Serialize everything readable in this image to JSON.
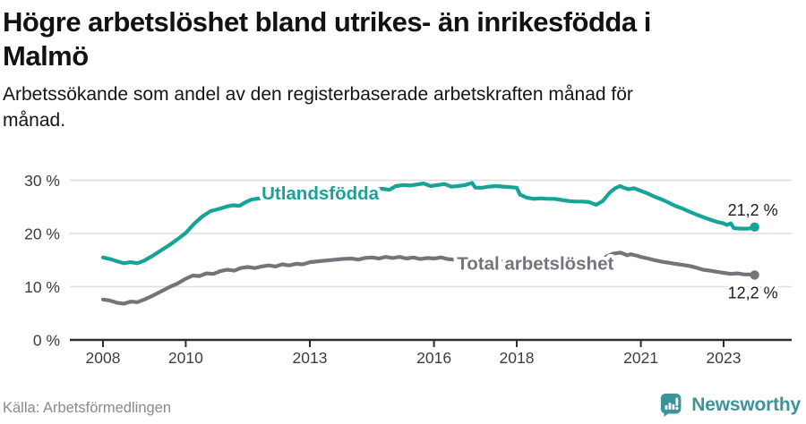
{
  "header": {
    "title": "Högre arbetslöshet bland utrikes- än inrikesfödda i\nMalmö",
    "subtitle": "Arbetssökande som andel av den registerbaserade arbetskraften månad för\nmånad."
  },
  "footer": {
    "source": "Källa: Arbetsförmedlingen",
    "logo_text": "Newsworthy"
  },
  "colors": {
    "accent_teal": "#17A398",
    "neutral_gray": "#76747B",
    "logo_teal": "#3B9598",
    "grid": "#DEDEDE",
    "axis": "#2D2D2D"
  },
  "chart_data": {
    "type": "line",
    "unit": "percent of registered labour force",
    "x_axis": {
      "range": [
        2007.2,
        2024.65
      ],
      "ticks": [
        {
          "value": 2008,
          "label": "2008"
        },
        {
          "value": 2010,
          "label": "2010"
        },
        {
          "value": 2013,
          "label": "2013"
        },
        {
          "value": 2016,
          "label": "2016"
        },
        {
          "value": 2018,
          "label": "2018"
        },
        {
          "value": 2021,
          "label": "2021"
        },
        {
          "value": 2023,
          "label": "2023"
        }
      ]
    },
    "y_axis": {
      "range": [
        0,
        32.8
      ],
      "grid": true,
      "ticks": [
        {
          "value": 0,
          "label": "0 %"
        },
        {
          "value": 10,
          "label": "10 %"
        },
        {
          "value": 20,
          "label": "20 %"
        },
        {
          "value": 30,
          "label": "30 %"
        }
      ]
    },
    "series": [
      {
        "name": "Utlandsfödda",
        "color": "#17A398",
        "end_label": "21,2 %",
        "end_value": 21.2,
        "end_label_side": "above",
        "label_anchor": [
          2013.25,
          27.6
        ],
        "points": [
          [
            2008.0,
            15.5
          ],
          [
            2008.17,
            15.2
          ],
          [
            2008.33,
            14.8
          ],
          [
            2008.5,
            14.4
          ],
          [
            2008.67,
            14.6
          ],
          [
            2008.83,
            14.4
          ],
          [
            2009.0,
            14.9
          ],
          [
            2009.2,
            15.8
          ],
          [
            2009.4,
            16.8
          ],
          [
            2009.6,
            17.8
          ],
          [
            2009.8,
            18.9
          ],
          [
            2010.0,
            20.1
          ],
          [
            2010.2,
            21.8
          ],
          [
            2010.4,
            23.2
          ],
          [
            2010.6,
            24.2
          ],
          [
            2010.8,
            24.6
          ],
          [
            2011.0,
            25.1
          ],
          [
            2011.15,
            25.3
          ],
          [
            2011.3,
            25.2
          ],
          [
            2011.45,
            25.9
          ],
          [
            2011.6,
            26.4
          ],
          [
            2011.8,
            26.6
          ],
          [
            2012.0,
            26.8
          ],
          [
            2012.25,
            27.0
          ],
          [
            2012.5,
            27.1
          ],
          [
            2012.75,
            27.2
          ],
          [
            2013.0,
            27.3
          ],
          [
            2013.25,
            27.4
          ],
          [
            2013.5,
            27.5
          ],
          [
            2013.75,
            27.6
          ],
          [
            2014.0,
            27.8
          ],
          [
            2014.25,
            28.0
          ],
          [
            2014.5,
            28.2
          ],
          [
            2014.75,
            28.4
          ],
          [
            2014.92,
            28.2
          ],
          [
            2015.08,
            28.9
          ],
          [
            2015.25,
            29.1
          ],
          [
            2015.42,
            29.0
          ],
          [
            2015.58,
            29.2
          ],
          [
            2015.75,
            29.4
          ],
          [
            2015.92,
            28.9
          ],
          [
            2016.08,
            29.1
          ],
          [
            2016.25,
            29.3
          ],
          [
            2016.42,
            28.8
          ],
          [
            2016.58,
            28.9
          ],
          [
            2016.75,
            29.1
          ],
          [
            2016.92,
            29.5
          ],
          [
            2017.0,
            28.6
          ],
          [
            2017.17,
            28.6
          ],
          [
            2017.33,
            28.8
          ],
          [
            2017.5,
            28.9
          ],
          [
            2017.67,
            28.8
          ],
          [
            2017.83,
            28.7
          ],
          [
            2018.0,
            28.6
          ],
          [
            2018.08,
            27.3
          ],
          [
            2018.25,
            26.7
          ],
          [
            2018.42,
            26.5
          ],
          [
            2018.58,
            26.6
          ],
          [
            2018.75,
            26.5
          ],
          [
            2018.92,
            26.5
          ],
          [
            2019.08,
            26.3
          ],
          [
            2019.25,
            26.1
          ],
          [
            2019.42,
            26.0
          ],
          [
            2019.58,
            26.0
          ],
          [
            2019.75,
            25.9
          ],
          [
            2019.92,
            25.4
          ],
          [
            2020.08,
            26.1
          ],
          [
            2020.25,
            27.7
          ],
          [
            2020.38,
            28.5
          ],
          [
            2020.5,
            28.9
          ],
          [
            2020.58,
            28.6
          ],
          [
            2020.71,
            28.3
          ],
          [
            2020.83,
            28.5
          ],
          [
            2021.0,
            28.0
          ],
          [
            2021.17,
            27.5
          ],
          [
            2021.33,
            26.9
          ],
          [
            2021.5,
            26.4
          ],
          [
            2021.67,
            25.8
          ],
          [
            2021.83,
            25.2
          ],
          [
            2022.0,
            24.7
          ],
          [
            2022.17,
            24.1
          ],
          [
            2022.33,
            23.6
          ],
          [
            2022.5,
            23.1
          ],
          [
            2022.67,
            22.6
          ],
          [
            2022.83,
            22.2
          ],
          [
            2023.0,
            21.9
          ],
          [
            2023.08,
            21.6
          ],
          [
            2023.17,
            21.9
          ],
          [
            2023.25,
            21.0
          ],
          [
            2023.42,
            20.9
          ],
          [
            2023.58,
            20.9
          ],
          [
            2023.67,
            21.0
          ],
          [
            2023.75,
            21.2
          ]
        ]
      },
      {
        "name": "Total arbetslöshet",
        "color": "#76747B",
        "end_label": "12,2 %",
        "end_value": 12.2,
        "end_label_side": "below",
        "label_anchor": [
          2018.45,
          14.4
        ],
        "points": [
          [
            2008.0,
            7.6
          ],
          [
            2008.17,
            7.4
          ],
          [
            2008.33,
            7.0
          ],
          [
            2008.5,
            6.8
          ],
          [
            2008.67,
            7.2
          ],
          [
            2008.83,
            7.1
          ],
          [
            2009.0,
            7.6
          ],
          [
            2009.2,
            8.3
          ],
          [
            2009.4,
            9.1
          ],
          [
            2009.6,
            9.9
          ],
          [
            2009.8,
            10.6
          ],
          [
            2010.0,
            11.5
          ],
          [
            2010.17,
            12.1
          ],
          [
            2010.33,
            12.0
          ],
          [
            2010.5,
            12.5
          ],
          [
            2010.67,
            12.4
          ],
          [
            2010.83,
            12.9
          ],
          [
            2011.0,
            13.2
          ],
          [
            2011.17,
            13.0
          ],
          [
            2011.33,
            13.5
          ],
          [
            2011.5,
            13.7
          ],
          [
            2011.67,
            13.5
          ],
          [
            2011.83,
            13.8
          ],
          [
            2012.0,
            14.0
          ],
          [
            2012.17,
            13.8
          ],
          [
            2012.33,
            14.2
          ],
          [
            2012.5,
            14.0
          ],
          [
            2012.67,
            14.3
          ],
          [
            2012.83,
            14.2
          ],
          [
            2013.0,
            14.6
          ],
          [
            2013.25,
            14.8
          ],
          [
            2013.5,
            15.0
          ],
          [
            2013.75,
            15.2
          ],
          [
            2014.0,
            15.3
          ],
          [
            2014.17,
            15.1
          ],
          [
            2014.33,
            15.4
          ],
          [
            2014.5,
            15.5
          ],
          [
            2014.67,
            15.3
          ],
          [
            2014.83,
            15.6
          ],
          [
            2015.0,
            15.4
          ],
          [
            2015.17,
            15.6
          ],
          [
            2015.33,
            15.3
          ],
          [
            2015.5,
            15.5
          ],
          [
            2015.67,
            15.2
          ],
          [
            2015.83,
            15.4
          ],
          [
            2016.0,
            15.3
          ],
          [
            2016.17,
            15.5
          ],
          [
            2016.33,
            15.2
          ],
          [
            2016.5,
            15.1
          ],
          [
            2016.75,
            15.0
          ],
          [
            2017.0,
            14.9
          ],
          [
            2017.25,
            14.9
          ],
          [
            2017.5,
            14.8
          ],
          [
            2017.75,
            14.7
          ],
          [
            2018.0,
            14.6
          ],
          [
            2018.25,
            14.5
          ],
          [
            2018.5,
            14.4
          ],
          [
            2018.75,
            14.4
          ],
          [
            2019.0,
            14.3
          ],
          [
            2019.25,
            14.2
          ],
          [
            2019.5,
            14.2
          ],
          [
            2019.75,
            14.3
          ],
          [
            2020.0,
            14.8
          ],
          [
            2020.17,
            15.7
          ],
          [
            2020.33,
            16.2
          ],
          [
            2020.5,
            16.4
          ],
          [
            2020.58,
            16.2
          ],
          [
            2020.67,
            15.9
          ],
          [
            2020.75,
            16.1
          ],
          [
            2020.92,
            15.8
          ],
          [
            2021.0,
            15.6
          ],
          [
            2021.17,
            15.3
          ],
          [
            2021.33,
            15.0
          ],
          [
            2021.5,
            14.7
          ],
          [
            2021.67,
            14.5
          ],
          [
            2021.83,
            14.3
          ],
          [
            2022.0,
            14.1
          ],
          [
            2022.17,
            13.9
          ],
          [
            2022.33,
            13.6
          ],
          [
            2022.5,
            13.2
          ],
          [
            2022.67,
            13.0
          ],
          [
            2022.83,
            12.8
          ],
          [
            2023.0,
            12.6
          ],
          [
            2023.17,
            12.4
          ],
          [
            2023.33,
            12.5
          ],
          [
            2023.5,
            12.3
          ],
          [
            2023.67,
            12.3
          ],
          [
            2023.75,
            12.2
          ]
        ]
      }
    ]
  }
}
